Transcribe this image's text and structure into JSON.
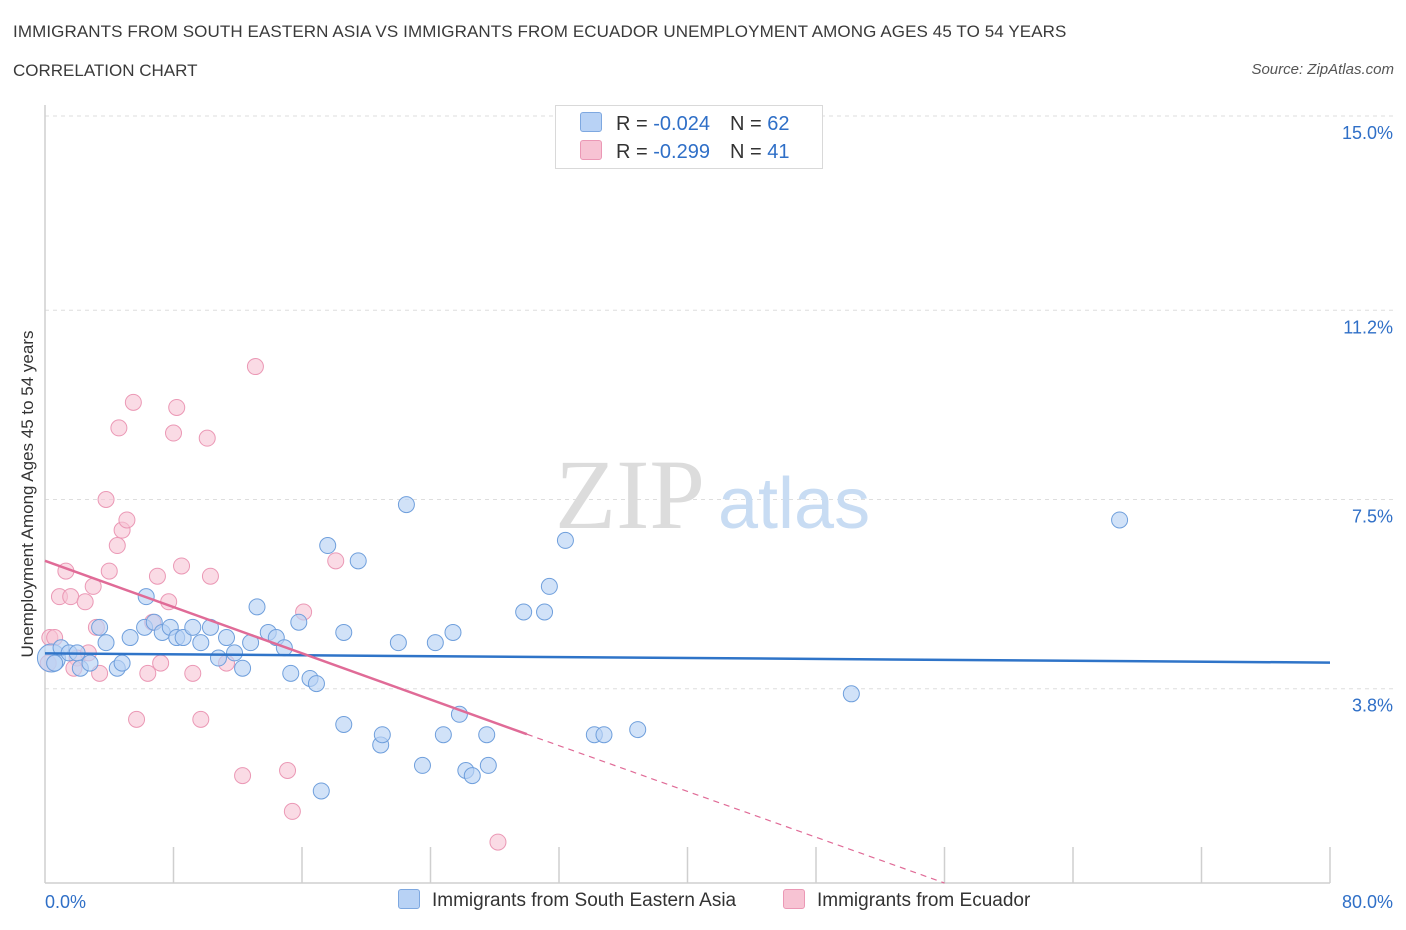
{
  "header": {
    "title": "IMMIGRANTS FROM SOUTH EASTERN ASIA VS IMMIGRANTS FROM ECUADOR UNEMPLOYMENT AMONG AGES 45 TO 54 YEARS",
    "subtitle": "CORRELATION CHART",
    "source": "Source: ZipAtlas.com"
  },
  "watermark": {
    "zip": "ZIP",
    "atlas": "atlas"
  },
  "legend": {
    "rows": [
      {
        "r_label": "R = ",
        "r_value": "-0.024",
        "n_label": "N = ",
        "n_value": "62"
      },
      {
        "r_label": "R = ",
        "r_value": "-0.299",
        "n_label": "N = ",
        "n_value": "41"
      }
    ]
  },
  "chart_data": {
    "type": "scatter",
    "title": "IMMIGRANTS FROM SOUTH EASTERN ASIA VS IMMIGRANTS FROM ECUADOR UNEMPLOYMENT AMONG AGES 45 TO 54 YEARS",
    "xlabel": "",
    "ylabel": "Unemployment Among Ages 45 to 54 years",
    "xlim": [
      0,
      80
    ],
    "ylim": [
      0,
      15
    ],
    "x_tick_labels": [
      "0.0%",
      "80.0%"
    ],
    "y_ticks": [
      3.8,
      7.5,
      11.2,
      15.0
    ],
    "y_tick_labels": [
      "3.8%",
      "7.5%",
      "11.2%",
      "15.0%"
    ],
    "grid": true,
    "legend_position": "top-center",
    "colors": {
      "blue_fill": "#b8d2f5",
      "blue_line": "#2f74c8",
      "pink_fill": "#f7c3d3",
      "pink_line": "#e06b97",
      "axis_text": "#2f6fc7"
    },
    "series": [
      {
        "name": "Immigrants from South Eastern Asia",
        "color": "#2f74c8",
        "trend": {
          "x": [
            0,
            80
          ],
          "y": [
            4.49,
            4.31
          ]
        },
        "points": [
          [
            0.4,
            4.4
          ],
          [
            0.6,
            4.3
          ],
          [
            1.0,
            4.6
          ],
          [
            1.5,
            4.5
          ],
          [
            2.0,
            4.5
          ],
          [
            2.2,
            4.2
          ],
          [
            2.8,
            4.3
          ],
          [
            3.4,
            5.0
          ],
          [
            3.8,
            4.7
          ],
          [
            4.5,
            4.2
          ],
          [
            4.8,
            4.3
          ],
          [
            5.3,
            4.8
          ],
          [
            6.2,
            5.0
          ],
          [
            6.3,
            5.6
          ],
          [
            6.8,
            5.1
          ],
          [
            7.3,
            4.9
          ],
          [
            7.8,
            5.0
          ],
          [
            8.2,
            4.8
          ],
          [
            8.6,
            4.8
          ],
          [
            9.2,
            5.0
          ],
          [
            9.7,
            4.7
          ],
          [
            10.3,
            5.0
          ],
          [
            10.8,
            4.4
          ],
          [
            11.3,
            4.8
          ],
          [
            11.8,
            4.5
          ],
          [
            12.3,
            4.2
          ],
          [
            12.8,
            4.7
          ],
          [
            13.2,
            5.4
          ],
          [
            13.9,
            4.9
          ],
          [
            14.4,
            4.8
          ],
          [
            14.9,
            4.6
          ],
          [
            15.3,
            4.1
          ],
          [
            15.8,
            5.1
          ],
          [
            16.5,
            4.0
          ],
          [
            16.9,
            3.9
          ],
          [
            17.2,
            1.8
          ],
          [
            17.6,
            6.6
          ],
          [
            18.6,
            4.9
          ],
          [
            18.6,
            3.1
          ],
          [
            19.5,
            6.3
          ],
          [
            20.9,
            2.7
          ],
          [
            21.0,
            2.9
          ],
          [
            22.0,
            4.7
          ],
          [
            22.5,
            7.4
          ],
          [
            23.5,
            2.3
          ],
          [
            24.3,
            4.7
          ],
          [
            24.8,
            2.9
          ],
          [
            25.4,
            4.9
          ],
          [
            25.8,
            3.3
          ],
          [
            26.2,
            2.2
          ],
          [
            26.6,
            2.1
          ],
          [
            27.5,
            2.9
          ],
          [
            27.6,
            2.3
          ],
          [
            29.8,
            5.3
          ],
          [
            31.1,
            5.3
          ],
          [
            31.4,
            5.8
          ],
          [
            32.4,
            6.7
          ],
          [
            34.2,
            2.9
          ],
          [
            34.8,
            2.9
          ],
          [
            36.9,
            3.0
          ],
          [
            50.2,
            3.7
          ],
          [
            66.9,
            7.1
          ]
        ]
      },
      {
        "name": "Immigrants from Ecuador",
        "color": "#e06b97",
        "trend": {
          "x": [
            0,
            30
          ],
          "y": [
            6.3,
            2.91
          ]
        },
        "trend_dashed": {
          "x": [
            30,
            56
          ],
          "y": [
            2.91,
            0.0
          ]
        },
        "points": [
          [
            0.3,
            4.8
          ],
          [
            0.6,
            4.8
          ],
          [
            0.9,
            5.6
          ],
          [
            1.3,
            6.1
          ],
          [
            1.6,
            5.6
          ],
          [
            2.0,
            4.4
          ],
          [
            2.5,
            5.5
          ],
          [
            2.7,
            4.5
          ],
          [
            3.2,
            5.0
          ],
          [
            3.4,
            4.1
          ],
          [
            3.8,
            7.5
          ],
          [
            4.0,
            6.1
          ],
          [
            4.5,
            6.6
          ],
          [
            4.8,
            6.9
          ],
          [
            5.1,
            7.1
          ],
          [
            5.5,
            9.4
          ],
          [
            5.7,
            3.2
          ],
          [
            6.4,
            4.1
          ],
          [
            6.7,
            5.1
          ],
          [
            7.0,
            6.0
          ],
          [
            7.2,
            4.3
          ],
          [
            7.7,
            5.5
          ],
          [
            8.0,
            8.8
          ],
          [
            8.2,
            9.3
          ],
          [
            8.5,
            6.2
          ],
          [
            9.2,
            4.1
          ],
          [
            9.7,
            3.2
          ],
          [
            10.1,
            8.7
          ],
          [
            10.3,
            6.0
          ],
          [
            11.3,
            4.3
          ],
          [
            12.3,
            2.1
          ],
          [
            13.1,
            10.1
          ],
          [
            15.1,
            2.2
          ],
          [
            15.4,
            1.4
          ],
          [
            16.1,
            5.3
          ],
          [
            18.1,
            6.3
          ],
          [
            28.2,
            0.8
          ],
          [
            4.6,
            8.9
          ],
          [
            1.8,
            4.2
          ],
          [
            3.0,
            5.8
          ],
          [
            0.2,
            4.3
          ]
        ]
      }
    ]
  },
  "bottom_legend": {
    "items": [
      {
        "label": "Immigrants from South Eastern Asia"
      },
      {
        "label": "Immigrants from Ecuador"
      }
    ]
  }
}
